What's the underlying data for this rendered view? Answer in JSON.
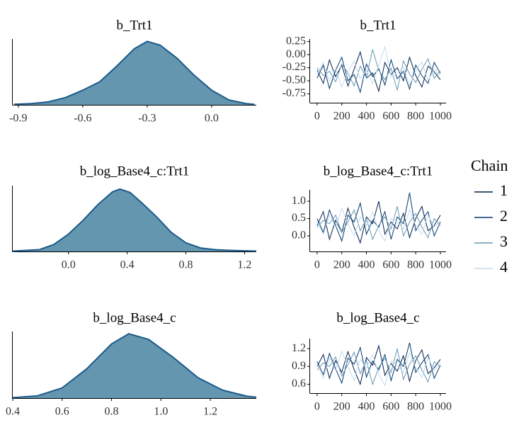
{
  "chart_data": [
    {
      "type": "density",
      "title": "b_Trt1",
      "color": "#6596b0",
      "line_color": "#1b5a8a",
      "x": [
        -0.92,
        -0.84,
        -0.76,
        -0.68,
        -0.6,
        -0.52,
        -0.44,
        -0.36,
        -0.3,
        -0.24,
        -0.16,
        -0.08,
        0.0,
        0.08,
        0.16,
        0.2
      ],
      "values": [
        0.02,
        0.05,
        0.12,
        0.3,
        0.6,
        0.95,
        1.6,
        2.3,
        2.6,
        2.45,
        1.9,
        1.2,
        0.6,
        0.2,
        0.05,
        0.02
      ],
      "xlim": [
        -0.926,
        0.208
      ],
      "ylim": [
        0,
        2.7
      ],
      "xticks": [
        -0.9,
        -0.6,
        -0.3,
        {
          "value": 0,
          "label": "0.0"
        }
      ]
    },
    {
      "type": "trace",
      "title": "b_Trt1",
      "x": [
        0,
        50,
        100,
        150,
        200,
        250,
        300,
        350,
        400,
        450,
        500,
        550,
        600,
        650,
        700,
        750,
        800,
        850,
        900,
        950,
        1000
      ],
      "series": [
        {
          "name": "1",
          "color": "#011f4b",
          "values": [
            -0.3,
            -0.55,
            -0.1,
            -0.42,
            -0.2,
            -0.6,
            -0.28,
            0.05,
            -0.45,
            -0.35,
            -0.7,
            -0.15,
            -0.38,
            -0.25,
            -0.5,
            -0.05,
            -0.4,
            -0.62,
            -0.22,
            -0.33,
            -0.48
          ]
        },
        {
          "name": "2",
          "color": "#03396c",
          "values": [
            -0.45,
            -0.2,
            -0.65,
            -0.3,
            -0.05,
            -0.5,
            -0.38,
            -0.72,
            -0.18,
            -0.42,
            -0.27,
            -0.58,
            -0.1,
            -0.46,
            -0.32,
            -0.66,
            -0.2,
            -0.4,
            -0.55,
            -0.15,
            -0.36
          ]
        },
        {
          "name": "3",
          "color": "#6497b1",
          "values": [
            -0.25,
            -0.4,
            -0.32,
            -0.52,
            -0.18,
            -0.35,
            -0.6,
            -0.22,
            -0.44,
            0.1,
            -0.3,
            -0.48,
            -0.26,
            -0.68,
            -0.12,
            -0.37,
            -0.53,
            -0.28,
            -0.08,
            -0.45,
            -0.31
          ]
        },
        {
          "name": "4",
          "color": "#c6dbef",
          "values": [
            -0.38,
            -0.15,
            -0.5,
            -0.27,
            -0.62,
            -0.33,
            -0.12,
            -0.46,
            -0.3,
            -0.56,
            -0.2,
            0.15,
            -0.42,
            -0.35,
            -0.24,
            -0.58,
            -0.31,
            -0.14,
            -0.5,
            -0.28,
            -0.4
          ]
        }
      ],
      "legend_title": "Chain",
      "xlim": [
        -57,
        1046
      ],
      "ylim": [
        -0.92,
        0.3
      ],
      "xticks": [
        0,
        200,
        400,
        600,
        800,
        1000
      ],
      "yticks": [
        0.25,
        {
          "value": 0,
          "label": "0.00"
        },
        -0.25,
        {
          "value": -0.5,
          "label": "-0.50"
        },
        -0.75
      ]
    },
    {
      "type": "density",
      "title": "b_log_Base4_c:Trt1",
      "color": "#6596b0",
      "line_color": "#1b5a8a",
      "x": [
        -0.38,
        -0.2,
        -0.1,
        0.0,
        0.1,
        0.2,
        0.3,
        0.35,
        0.42,
        0.5,
        0.6,
        0.7,
        0.8,
        0.9,
        1.0,
        1.1,
        1.28
      ],
      "values": [
        0.01,
        0.05,
        0.2,
        0.5,
        0.9,
        1.35,
        1.72,
        1.8,
        1.7,
        1.4,
        1.0,
        0.55,
        0.25,
        0.1,
        0.05,
        0.03,
        0.01
      ],
      "xlim": [
        -0.38,
        1.28
      ],
      "ylim": [
        0,
        1.9
      ],
      "xticks": [
        {
          "value": 0,
          "label": "0.0"
        },
        0.4,
        0.8,
        1.2
      ]
    },
    {
      "type": "trace",
      "title": "b_log_Base4_c:Trt1",
      "x": [
        0,
        50,
        100,
        150,
        200,
        250,
        300,
        350,
        400,
        450,
        500,
        550,
        600,
        650,
        700,
        750,
        800,
        850,
        900,
        950,
        1000
      ],
      "series": [
        {
          "name": "1",
          "color": "#011f4b",
          "values": [
            0.3,
            0.7,
            -0.1,
            0.45,
            0.1,
            0.8,
            0.25,
            -0.2,
            0.55,
            0.35,
            1.0,
            0.05,
            0.4,
            0.2,
            0.65,
            -0.05,
            0.5,
            0.85,
            0.15,
            0.3,
            0.6
          ]
        },
        {
          "name": "2",
          "color": "#03396c",
          "values": [
            0.5,
            0.1,
            0.75,
            0.3,
            -0.15,
            0.6,
            0.4,
            0.95,
            0.05,
            0.45,
            0.25,
            0.7,
            -0.1,
            0.55,
            0.35,
            1.25,
            0.15,
            0.45,
            0.7,
            0.0,
            0.4
          ]
        },
        {
          "name": "3",
          "color": "#6497b1",
          "values": [
            0.25,
            0.45,
            0.35,
            0.6,
            0.1,
            0.4,
            0.75,
            0.15,
            0.5,
            -0.1,
            0.3,
            0.55,
            0.2,
            0.85,
            0.0,
            0.4,
            0.65,
            0.25,
            -0.05,
            0.5,
            0.3
          ]
        },
        {
          "name": "4",
          "color": "#c6dbef",
          "values": [
            0.4,
            0.05,
            0.6,
            0.25,
            0.8,
            0.35,
            0.0,
            0.55,
            0.3,
            0.7,
            0.15,
            -0.15,
            0.5,
            0.4,
            0.2,
            0.75,
            0.3,
            0.05,
            0.6,
            0.25,
            0.45
          ]
        }
      ],
      "xlim": [
        -57,
        1046
      ],
      "ylim": [
        -0.45,
        1.33
      ],
      "xticks": [
        0,
        200,
        400,
        600,
        800,
        1000
      ],
      "yticks": [
        {
          "value": 1,
          "label": "1.0"
        },
        0.5,
        {
          "value": 0,
          "label": "0.0"
        }
      ]
    },
    {
      "type": "density",
      "title": "b_log_Base4_c",
      "color": "#6596b0",
      "line_color": "#1b5a8a",
      "x": [
        0.4,
        0.5,
        0.6,
        0.7,
        0.8,
        0.87,
        0.95,
        1.05,
        1.15,
        1.25,
        1.35,
        1.386
      ],
      "values": [
        0.02,
        0.1,
        0.45,
        1.3,
        2.4,
        2.85,
        2.6,
        1.8,
        0.9,
        0.35,
        0.08,
        0.04
      ],
      "xlim": [
        0.4,
        1.386
      ],
      "ylim": [
        0,
        2.95
      ],
      "xticks": [
        0.4,
        0.6,
        0.8,
        {
          "value": 1,
          "label": "1.0"
        },
        1.2
      ]
    },
    {
      "type": "trace",
      "title": "b_log_Base4_c",
      "x": [
        0,
        50,
        100,
        150,
        200,
        250,
        300,
        350,
        400,
        450,
        500,
        550,
        600,
        650,
        700,
        750,
        800,
        850,
        900,
        950,
        1000
      ],
      "series": [
        {
          "name": "1",
          "color": "#011f4b",
          "values": [
            0.9,
            1.1,
            0.7,
            1.0,
            0.8,
            1.15,
            0.85,
            0.6,
            1.05,
            0.92,
            1.25,
            0.75,
            0.95,
            0.82,
            1.08,
            0.65,
            1.0,
            1.18,
            0.78,
            0.88,
            1.02
          ]
        },
        {
          "name": "2",
          "color": "#03396c",
          "values": [
            0.98,
            0.76,
            1.12,
            0.86,
            0.62,
            1.04,
            0.94,
            1.22,
            0.72,
            0.99,
            0.84,
            1.1,
            0.66,
            1.02,
            0.9,
            1.3,
            0.8,
            0.96,
            1.1,
            0.7,
            0.92
          ]
        },
        {
          "name": "3",
          "color": "#6497b1",
          "values": [
            0.84,
            0.96,
            0.9,
            1.06,
            0.74,
            0.93,
            1.14,
            0.78,
            1.0,
            0.6,
            0.88,
            1.04,
            0.8,
            1.2,
            0.68,
            0.94,
            1.08,
            0.84,
            0.64,
            0.98,
            0.89
          ]
        },
        {
          "name": "4",
          "color": "#c6dbef",
          "values": [
            0.93,
            0.7,
            1.04,
            0.83,
            1.16,
            0.9,
            0.66,
            1.02,
            0.87,
            1.1,
            0.77,
            0.58,
            0.99,
            0.92,
            0.8,
            1.13,
            0.88,
            0.72,
            1.05,
            0.83,
            0.97
          ]
        }
      ],
      "xlim": [
        -57,
        1046
      ],
      "ylim": [
        0.45,
        1.37
      ],
      "xticks": [
        0,
        200,
        400,
        600,
        800,
        1000
      ],
      "yticks": [
        0.6,
        0.9,
        1.2
      ]
    }
  ]
}
